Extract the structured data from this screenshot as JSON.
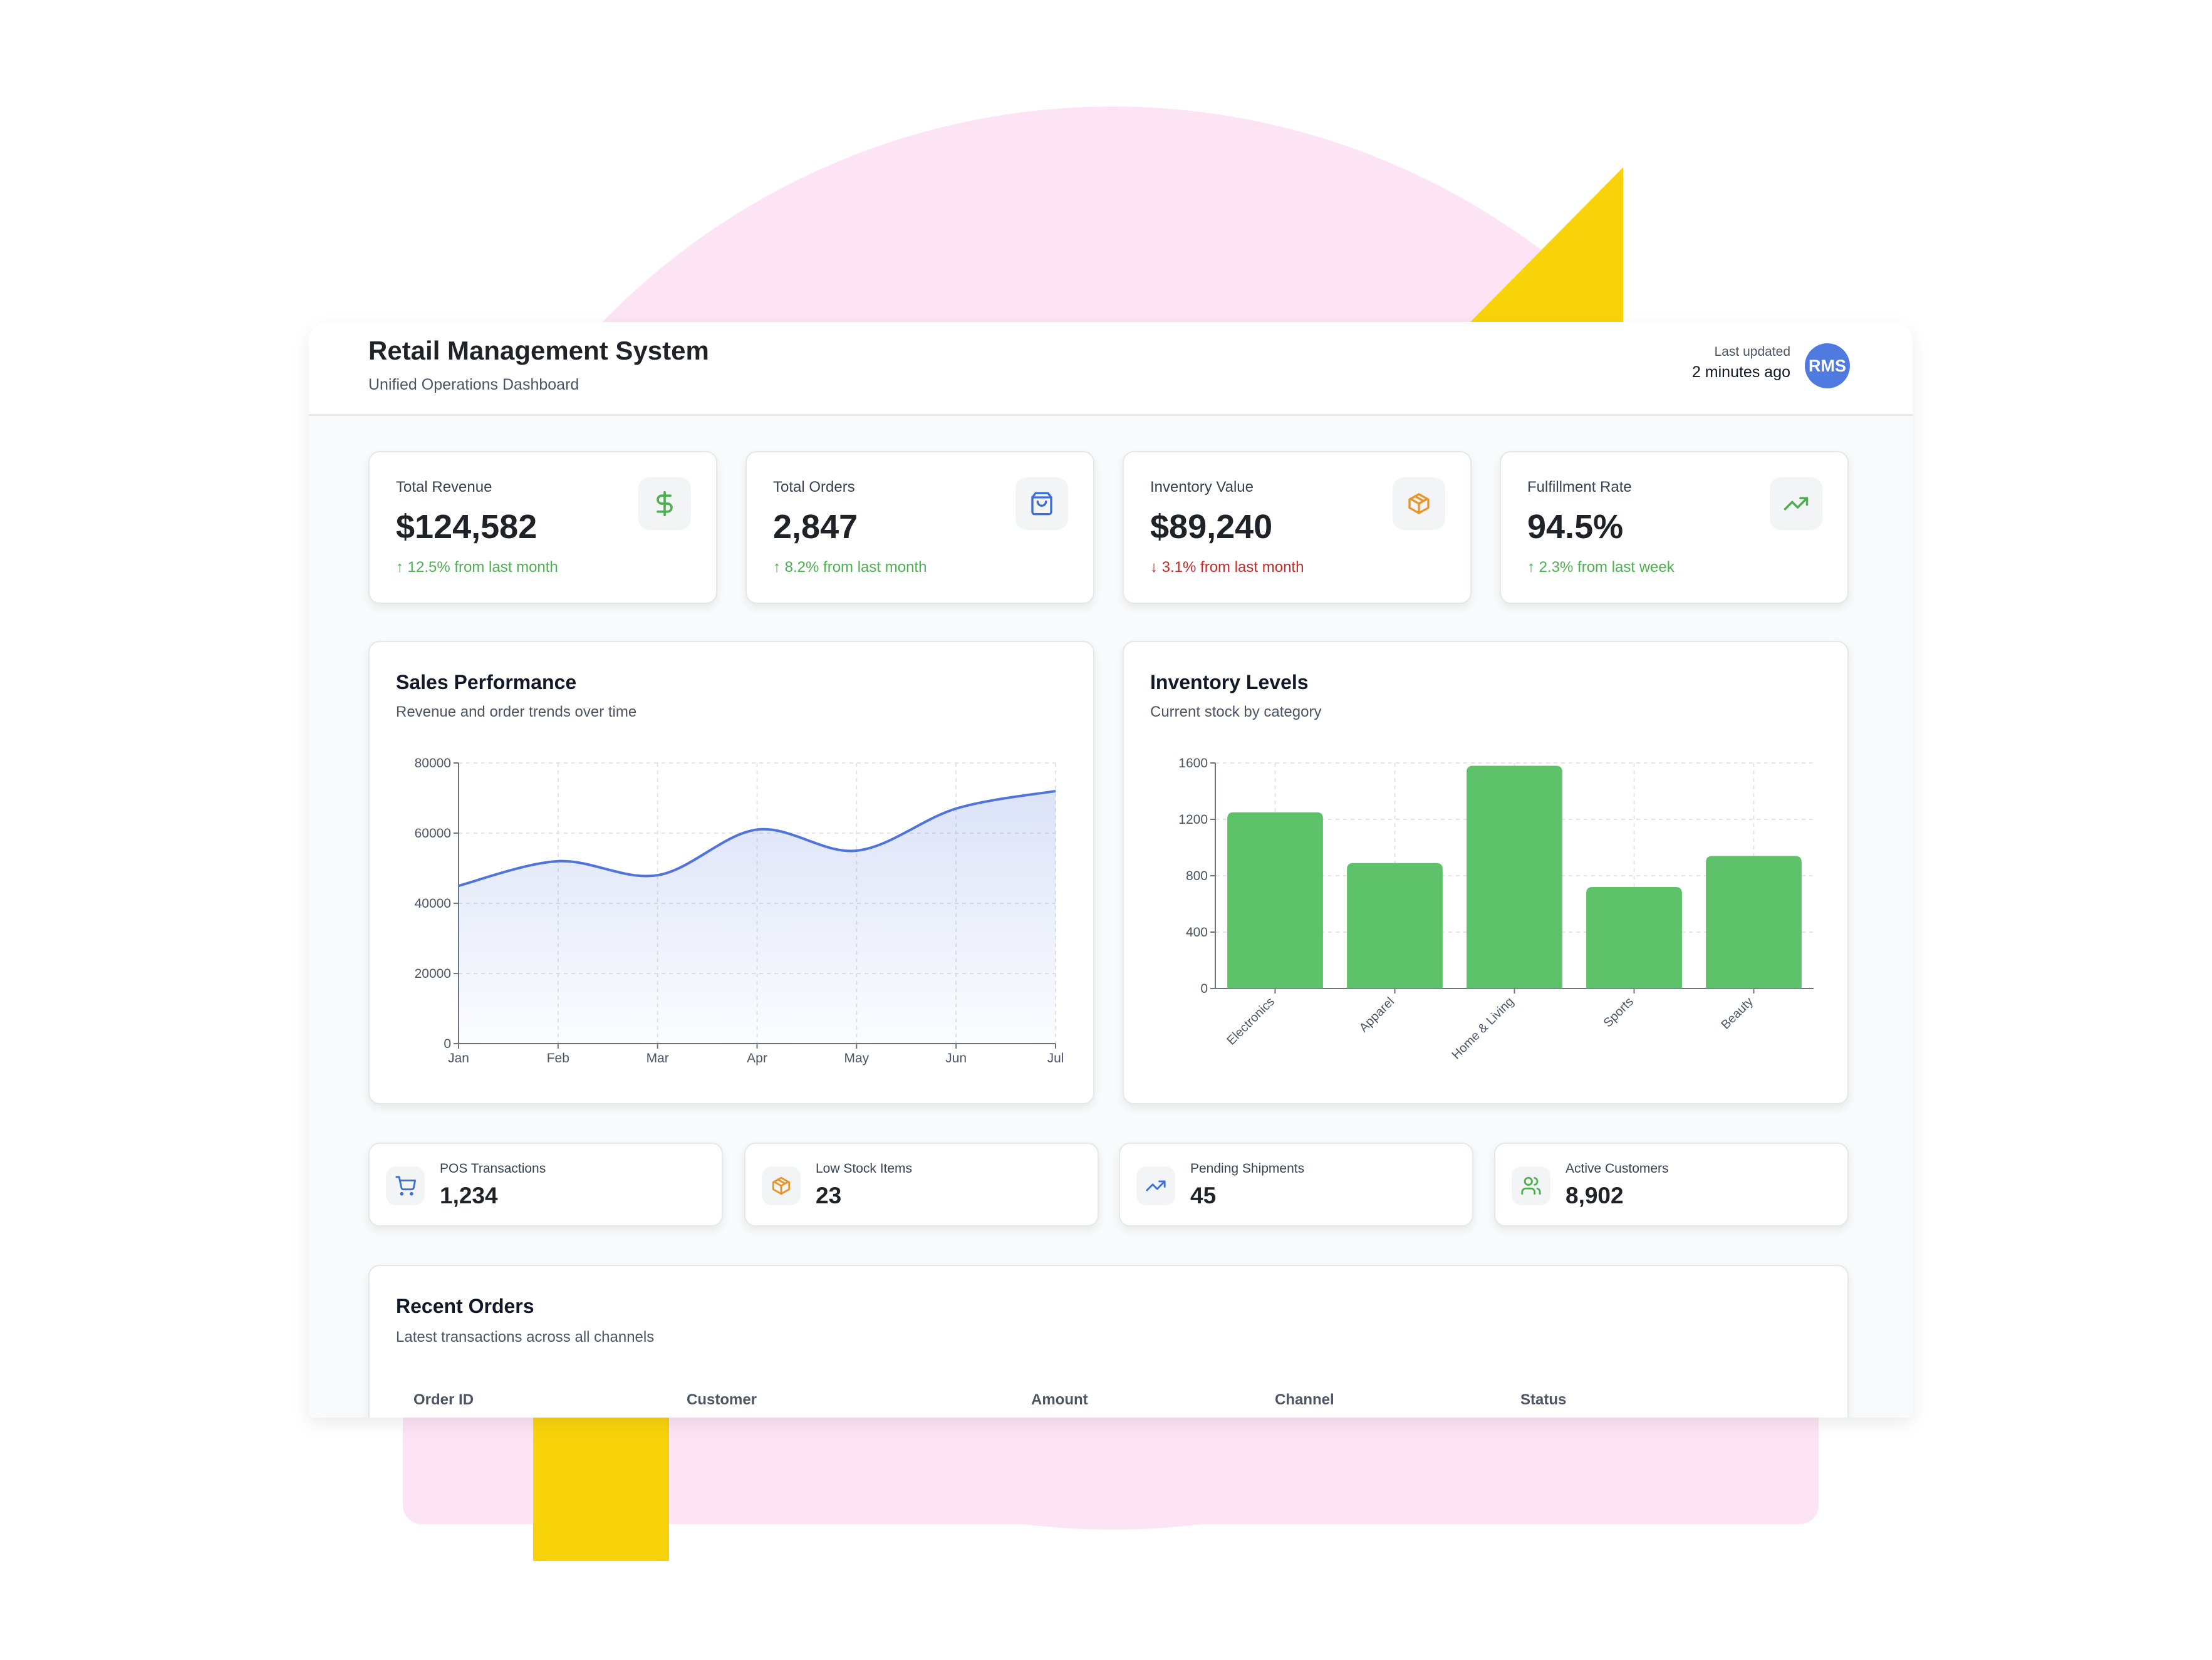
{
  "header": {
    "title": "Retail Management System",
    "subtitle": "Unified Operations Dashboard",
    "last_updated_label": "Last updated",
    "last_updated_value": "2 minutes ago",
    "avatar_initials": "RMS"
  },
  "kpis": [
    {
      "label": "Total Revenue",
      "value": "$124,582",
      "change": "↑ 12.5% from last month",
      "trend": "up",
      "icon": "dollar-icon",
      "color": "#4caf50"
    },
    {
      "label": "Total Orders",
      "value": "2,847",
      "change": "↑ 8.2% from last month",
      "trend": "up",
      "icon": "shopping-bag-icon",
      "color": "#3b6fd8"
    },
    {
      "label": "Inventory Value",
      "value": "$89,240",
      "change": "↓ 3.1% from last month",
      "trend": "down",
      "icon": "package-icon",
      "color": "#e8952a"
    },
    {
      "label": "Fulfillment Rate",
      "value": "94.5%",
      "change": "↑ 2.3% from last week",
      "trend": "up",
      "icon": "trending-up-icon",
      "color": "#4caf50"
    }
  ],
  "colors": {
    "up": "#4caf50",
    "down": "#c62828",
    "line": "#4f74dc",
    "bar": "#5ec26a"
  },
  "sales_card": {
    "title": "Sales Performance",
    "subtitle": "Revenue and order trends over time"
  },
  "inventory_card": {
    "title": "Inventory Levels",
    "subtitle": "Current stock by category"
  },
  "chart_data": [
    {
      "type": "area",
      "categories": [
        "Jan",
        "Feb",
        "Mar",
        "Apr",
        "May",
        "Jun",
        "Jul"
      ],
      "values": [
        45000,
        52000,
        48000,
        61000,
        55000,
        67000,
        72000
      ],
      "ylim": [
        0,
        80000
      ],
      "yticks": [
        0,
        20000,
        40000,
        60000,
        80000
      ],
      "grid": true
    },
    {
      "type": "bar",
      "categories": [
        "Electronics",
        "Apparel",
        "Home & Living",
        "Sports",
        "Beauty"
      ],
      "values": [
        1250,
        890,
        1580,
        720,
        940
      ],
      "ylim": [
        0,
        1600
      ],
      "yticks": [
        0,
        400,
        800,
        1200,
        1600
      ],
      "grid": true
    }
  ],
  "mini_stats": [
    {
      "label": "POS Transactions",
      "value": "1,234",
      "icon": "cart-icon",
      "color": "#3b6fd8"
    },
    {
      "label": "Low Stock Items",
      "value": "23",
      "icon": "package-icon",
      "color": "#e8952a"
    },
    {
      "label": "Pending Shipments",
      "value": "45",
      "icon": "trending-up-icon",
      "color": "#3b6fd8"
    },
    {
      "label": "Active Customers",
      "value": "8,902",
      "icon": "users-icon",
      "color": "#4caf50"
    }
  ],
  "orders": {
    "title": "Recent Orders",
    "subtitle": "Latest transactions across all channels",
    "columns": [
      "Order ID",
      "Customer",
      "Amount",
      "Channel",
      "Status"
    ]
  }
}
